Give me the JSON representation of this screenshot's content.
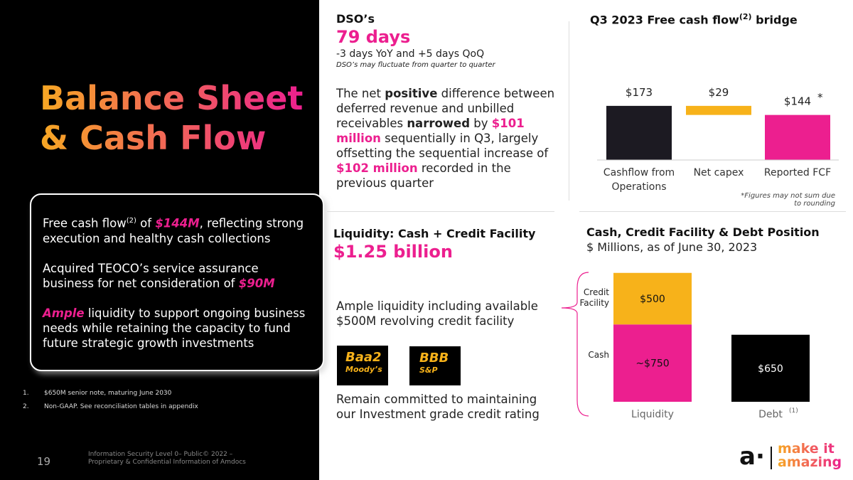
{
  "left": {
    "title_line1": "Balance Sheet",
    "title_line2": "& Cash Flow",
    "box": {
      "p1_a": "Free cash flow",
      "p1_sup": "(2)",
      "p1_b": " of ",
      "p1_hl": "$144M",
      "p1_c": ", reflecting strong execution and healthy cash collections",
      "p2_a": "Acquired TEOCO’s service assurance business for net consideration of ",
      "p2_hl": "$90M",
      "p3_hl": "Ample",
      "p3_a": " liquidity to support ongoing business needs while retaining the capacity to fund future strategic growth investments"
    },
    "notes": [
      {
        "n": "1.",
        "text": "$650M senior note, maturing June 2030"
      },
      {
        "n": "2.",
        "text": "Non-GAAP. See reconciliation tables in appendix"
      }
    ],
    "page_number": "19",
    "confidential": "Information Security Level 0– Public© 2022 – Proprietary & Confidential Information of Amdocs"
  },
  "dso": {
    "heading": "DSO’s",
    "value": "79 days",
    "change": "-3 days YoY and +5 days QoQ",
    "note": "DSO’s may fluctuate from quarter to quarter",
    "t1": "The net ",
    "t2": "positive",
    "t3": " difference between deferred revenue and unbilled receivables ",
    "t4": "narrowed",
    "t5": " by ",
    "t6": "$101 million",
    "t7": " sequentially in Q3, largely offsetting the sequential increase of ",
    "t8": "$102 million",
    "t9": " recorded in the previous quarter"
  },
  "liquidity": {
    "heading": "Liquidity: Cash + Credit Facility",
    "value": "$1.25 billion",
    "text1": "Ample liquidity including available $500M revolving credit facility",
    "ratings": [
      {
        "grade": "Baa2",
        "agency": "Moody’s"
      },
      {
        "grade": "BBB",
        "agency": "S&P"
      }
    ],
    "text2": "Remain committed to maintaining our Investment grade credit rating"
  },
  "chart_data": [
    {
      "type": "bar",
      "subtype": "waterfall",
      "title_a": "Q3 2023 Free cash flow",
      "title_sup": "(2)",
      "title_b": " bridge",
      "categories": [
        "Cashflow from Operations",
        "Net capex",
        "Reported FCF"
      ],
      "values": [
        173,
        -29,
        144
      ],
      "labels": [
        "$173",
        "$29",
        "$144"
      ],
      "colors": [
        "#1c1a22",
        "#f7b21a",
        "#ec1f8f"
      ],
      "asterisk": "*",
      "footnote": "*Figures may not sum due to rounding"
    },
    {
      "type": "bar",
      "subtype": "stacked",
      "title": "Cash, Credit Facility & Debt Position",
      "subtitle": "$ Millions, as of June 30, 2023",
      "categories": [
        "Liquidity",
        "Debt"
      ],
      "category_sup": [
        "",
        "(1)"
      ],
      "series": [
        {
          "name": "Cash",
          "values": [
            750,
            0
          ],
          "labels": [
            "~$750",
            ""
          ],
          "color": "#ec1f8f"
        },
        {
          "name": "Credit Facility",
          "values": [
            500,
            0
          ],
          "labels": [
            "$500",
            ""
          ],
          "color": "#f7b21a"
        },
        {
          "name": "Debt",
          "values": [
            0,
            650
          ],
          "labels": [
            "",
            "$650"
          ],
          "color": "#000000"
        }
      ],
      "side_labels": [
        "Credit Facility",
        "Cash"
      ]
    }
  ],
  "logo": {
    "mark": "a·",
    "line1": "make it",
    "line2": "amazing"
  }
}
